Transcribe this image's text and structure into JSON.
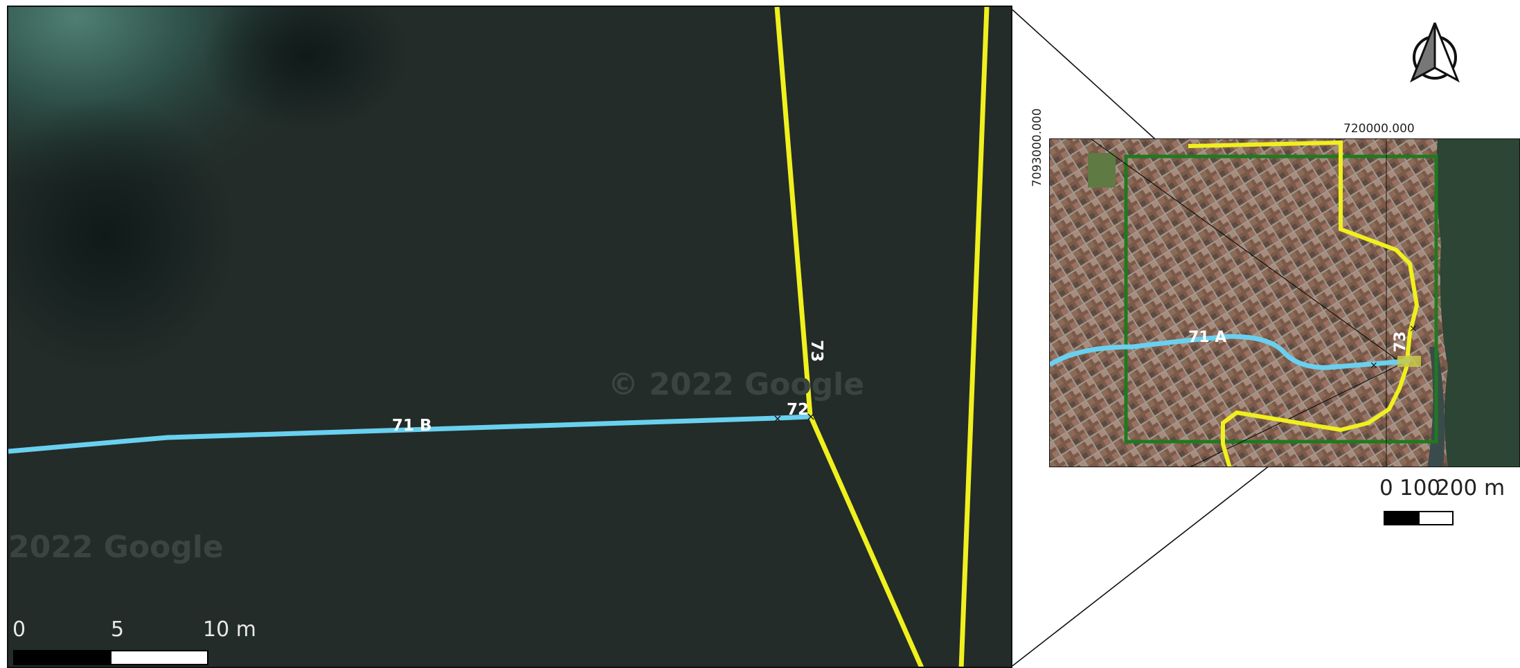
{
  "main_map": {
    "labels": {
      "segment_71b": "71 B",
      "node_72": "72",
      "segment_73": "73"
    },
    "watermarks": [
      "© 2022 Google",
      "2022 Google"
    ],
    "scale_bar": {
      "tick_labels": [
        "0",
        "5",
        "10 m"
      ]
    }
  },
  "inset_map": {
    "coord_x": "720000.000",
    "coord_y": "7093000.000",
    "labels": {
      "segment_71a": "71 A",
      "segment_73": "73"
    },
    "scale_bar": {
      "tick_labels": [
        "0",
        "100",
        "200 m"
      ]
    }
  },
  "colors": {
    "stream_line": "#6ad0ef",
    "boundary_line": "#f0f01e",
    "study_area_frame": "#1f7a1f",
    "imagery_dark": "#1f2a27"
  },
  "icons": {
    "north_arrow": "north-arrow-icon"
  }
}
